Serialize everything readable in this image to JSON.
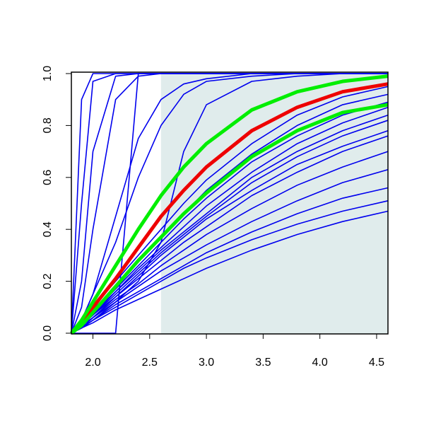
{
  "chart_data": {
    "type": "line",
    "x": [
      1.81,
      1.9,
      2.0,
      2.2,
      2.4,
      2.6,
      2.8,
      3.0,
      3.4,
      3.8,
      4.2,
      4.6
    ],
    "xlim": [
      1.81,
      4.6
    ],
    "ylim": [
      0,
      1
    ],
    "xticks": [
      {
        "value": 2.0,
        "label": "2.0"
      },
      2.5,
      {
        "value": 3.0,
        "label": "3.0"
      },
      3.5,
      {
        "value": 4.0,
        "label": "4.0"
      },
      4.5
    ],
    "yticks": [
      {
        "value": 0,
        "label": "0.0"
      },
      {
        "value": 0.2,
        "label": "0.2"
      },
      {
        "value": 0.4,
        "label": "0.4"
      },
      {
        "value": 0.6,
        "label": "0.6"
      },
      {
        "value": 0.8,
        "label": "0.8"
      },
      {
        "value": 1,
        "label": "1.0"
      }
    ],
    "shade": {
      "x": [
        2.6,
        4.6
      ],
      "color": "#e0ecec"
    },
    "series": [
      {
        "color": "#0000ee",
        "values": [
          0,
          0.9,
          1,
          1,
          1,
          1,
          1,
          1,
          1,
          1,
          1,
          1
        ]
      },
      {
        "color": "#0000ee",
        "values": [
          0,
          0.5,
          0.97,
          1,
          1,
          1,
          1,
          1,
          1,
          1,
          1,
          1
        ]
      },
      {
        "color": "#0000ee",
        "values": [
          0,
          0.2,
          0.7,
          0.99,
          1,
          1,
          1,
          1,
          1,
          1,
          1,
          1
        ]
      },
      {
        "color": "#0000ee",
        "values": [
          0,
          0,
          0,
          0,
          1,
          1,
          1,
          1,
          1,
          1,
          1,
          1
        ]
      },
      {
        "color": "#0000ee",
        "values": [
          0,
          0.1,
          0.4,
          0.9,
          0.99,
          1,
          1,
          1,
          1,
          1,
          1,
          1
        ]
      },
      {
        "color": "#0000ee",
        "values": [
          0,
          0.02,
          0.05,
          0.12,
          0.2,
          0.35,
          0.7,
          0.88,
          0.97,
          0.99,
          1,
          1
        ]
      },
      {
        "color": "#0000ee",
        "values": [
          0,
          0.05,
          0.15,
          0.45,
          0.75,
          0.9,
          0.96,
          0.98,
          1,
          1,
          1,
          1
        ]
      },
      {
        "color": "#0000ee",
        "values": [
          0,
          0.05,
          0.15,
          0.35,
          0.6,
          0.8,
          0.92,
          0.97,
          0.99,
          1,
          1,
          1
        ]
      },
      {
        "color": "#0000ee",
        "values": [
          0,
          0.02,
          0.05,
          0.1,
          0.15,
          0.2,
          0.25,
          0.29,
          0.36,
          0.42,
          0.47,
          0.51
        ]
      },
      {
        "color": "#0000ee",
        "values": [
          0,
          0.02,
          0.05,
          0.11,
          0.16,
          0.21,
          0.26,
          0.31,
          0.39,
          0.46,
          0.52,
          0.56
        ]
      },
      {
        "color": "#0000ee",
        "values": [
          0,
          0.02,
          0.06,
          0.12,
          0.18,
          0.24,
          0.29,
          0.34,
          0.43,
          0.51,
          0.58,
          0.63
        ]
      },
      {
        "color": "#0000ee",
        "values": [
          0,
          0.03,
          0.06,
          0.13,
          0.19,
          0.26,
          0.32,
          0.38,
          0.48,
          0.57,
          0.64,
          0.7
        ]
      },
      {
        "color": "#0000ee",
        "values": [
          0,
          0.03,
          0.07,
          0.14,
          0.21,
          0.28,
          0.35,
          0.41,
          0.53,
          0.62,
          0.7,
          0.76
        ]
      },
      {
        "color": "#0000ee",
        "values": [
          0,
          0.03,
          0.07,
          0.15,
          0.23,
          0.31,
          0.38,
          0.45,
          0.58,
          0.68,
          0.76,
          0.82
        ]
      },
      {
        "color": "#0000ee",
        "values": [
          0,
          0.03,
          0.08,
          0.16,
          0.25,
          0.33,
          0.41,
          0.49,
          0.62,
          0.73,
          0.81,
          0.87
        ]
      },
      {
        "color": "#0000ee",
        "values": [
          0,
          0.04,
          0.09,
          0.18,
          0.28,
          0.37,
          0.46,
          0.55,
          0.69,
          0.8,
          0.88,
          0.92
        ]
      },
      {
        "color": "#0000ee",
        "values": [
          0,
          0.04,
          0.1,
          0.2,
          0.3,
          0.4,
          0.5,
          0.59,
          0.73,
          0.84,
          0.91,
          0.95
        ]
      },
      {
        "color": "#0000ee",
        "values": [
          0,
          0.02,
          0.06,
          0.14,
          0.22,
          0.3,
          0.37,
          0.44,
          0.55,
          0.65,
          0.72,
          0.78
        ]
      },
      {
        "color": "#0000ee",
        "values": [
          0,
          0.02,
          0.04,
          0.09,
          0.13,
          0.17,
          0.21,
          0.25,
          0.32,
          0.38,
          0.43,
          0.47
        ]
      },
      {
        "color": "#0000ee",
        "values": [
          0,
          0.03,
          0.08,
          0.17,
          0.26,
          0.35,
          0.44,
          0.52,
          0.66,
          0.76,
          0.84,
          0.89
        ]
      },
      {
        "color": "#0000ee",
        "values": [
          0,
          0.03,
          0.07,
          0.16,
          0.24,
          0.32,
          0.39,
          0.46,
          0.6,
          0.7,
          0.78,
          0.84
        ]
      },
      {
        "color": "#ee0000",
        "values": [
          0,
          0.04,
          0.1,
          0.21,
          0.33,
          0.45,
          0.55,
          0.64,
          0.78,
          0.87,
          0.93,
          0.96
        ]
      },
      {
        "color": "#00ee00",
        "values": [
          0,
          0.05,
          0.12,
          0.26,
          0.4,
          0.53,
          0.64,
          0.73,
          0.86,
          0.93,
          0.97,
          0.99
        ]
      },
      {
        "color": "#00ee00",
        "values": [
          0,
          0.03,
          0.08,
          0.18,
          0.28,
          0.37,
          0.46,
          0.54,
          0.68,
          0.78,
          0.85,
          0.88
        ]
      }
    ]
  }
}
